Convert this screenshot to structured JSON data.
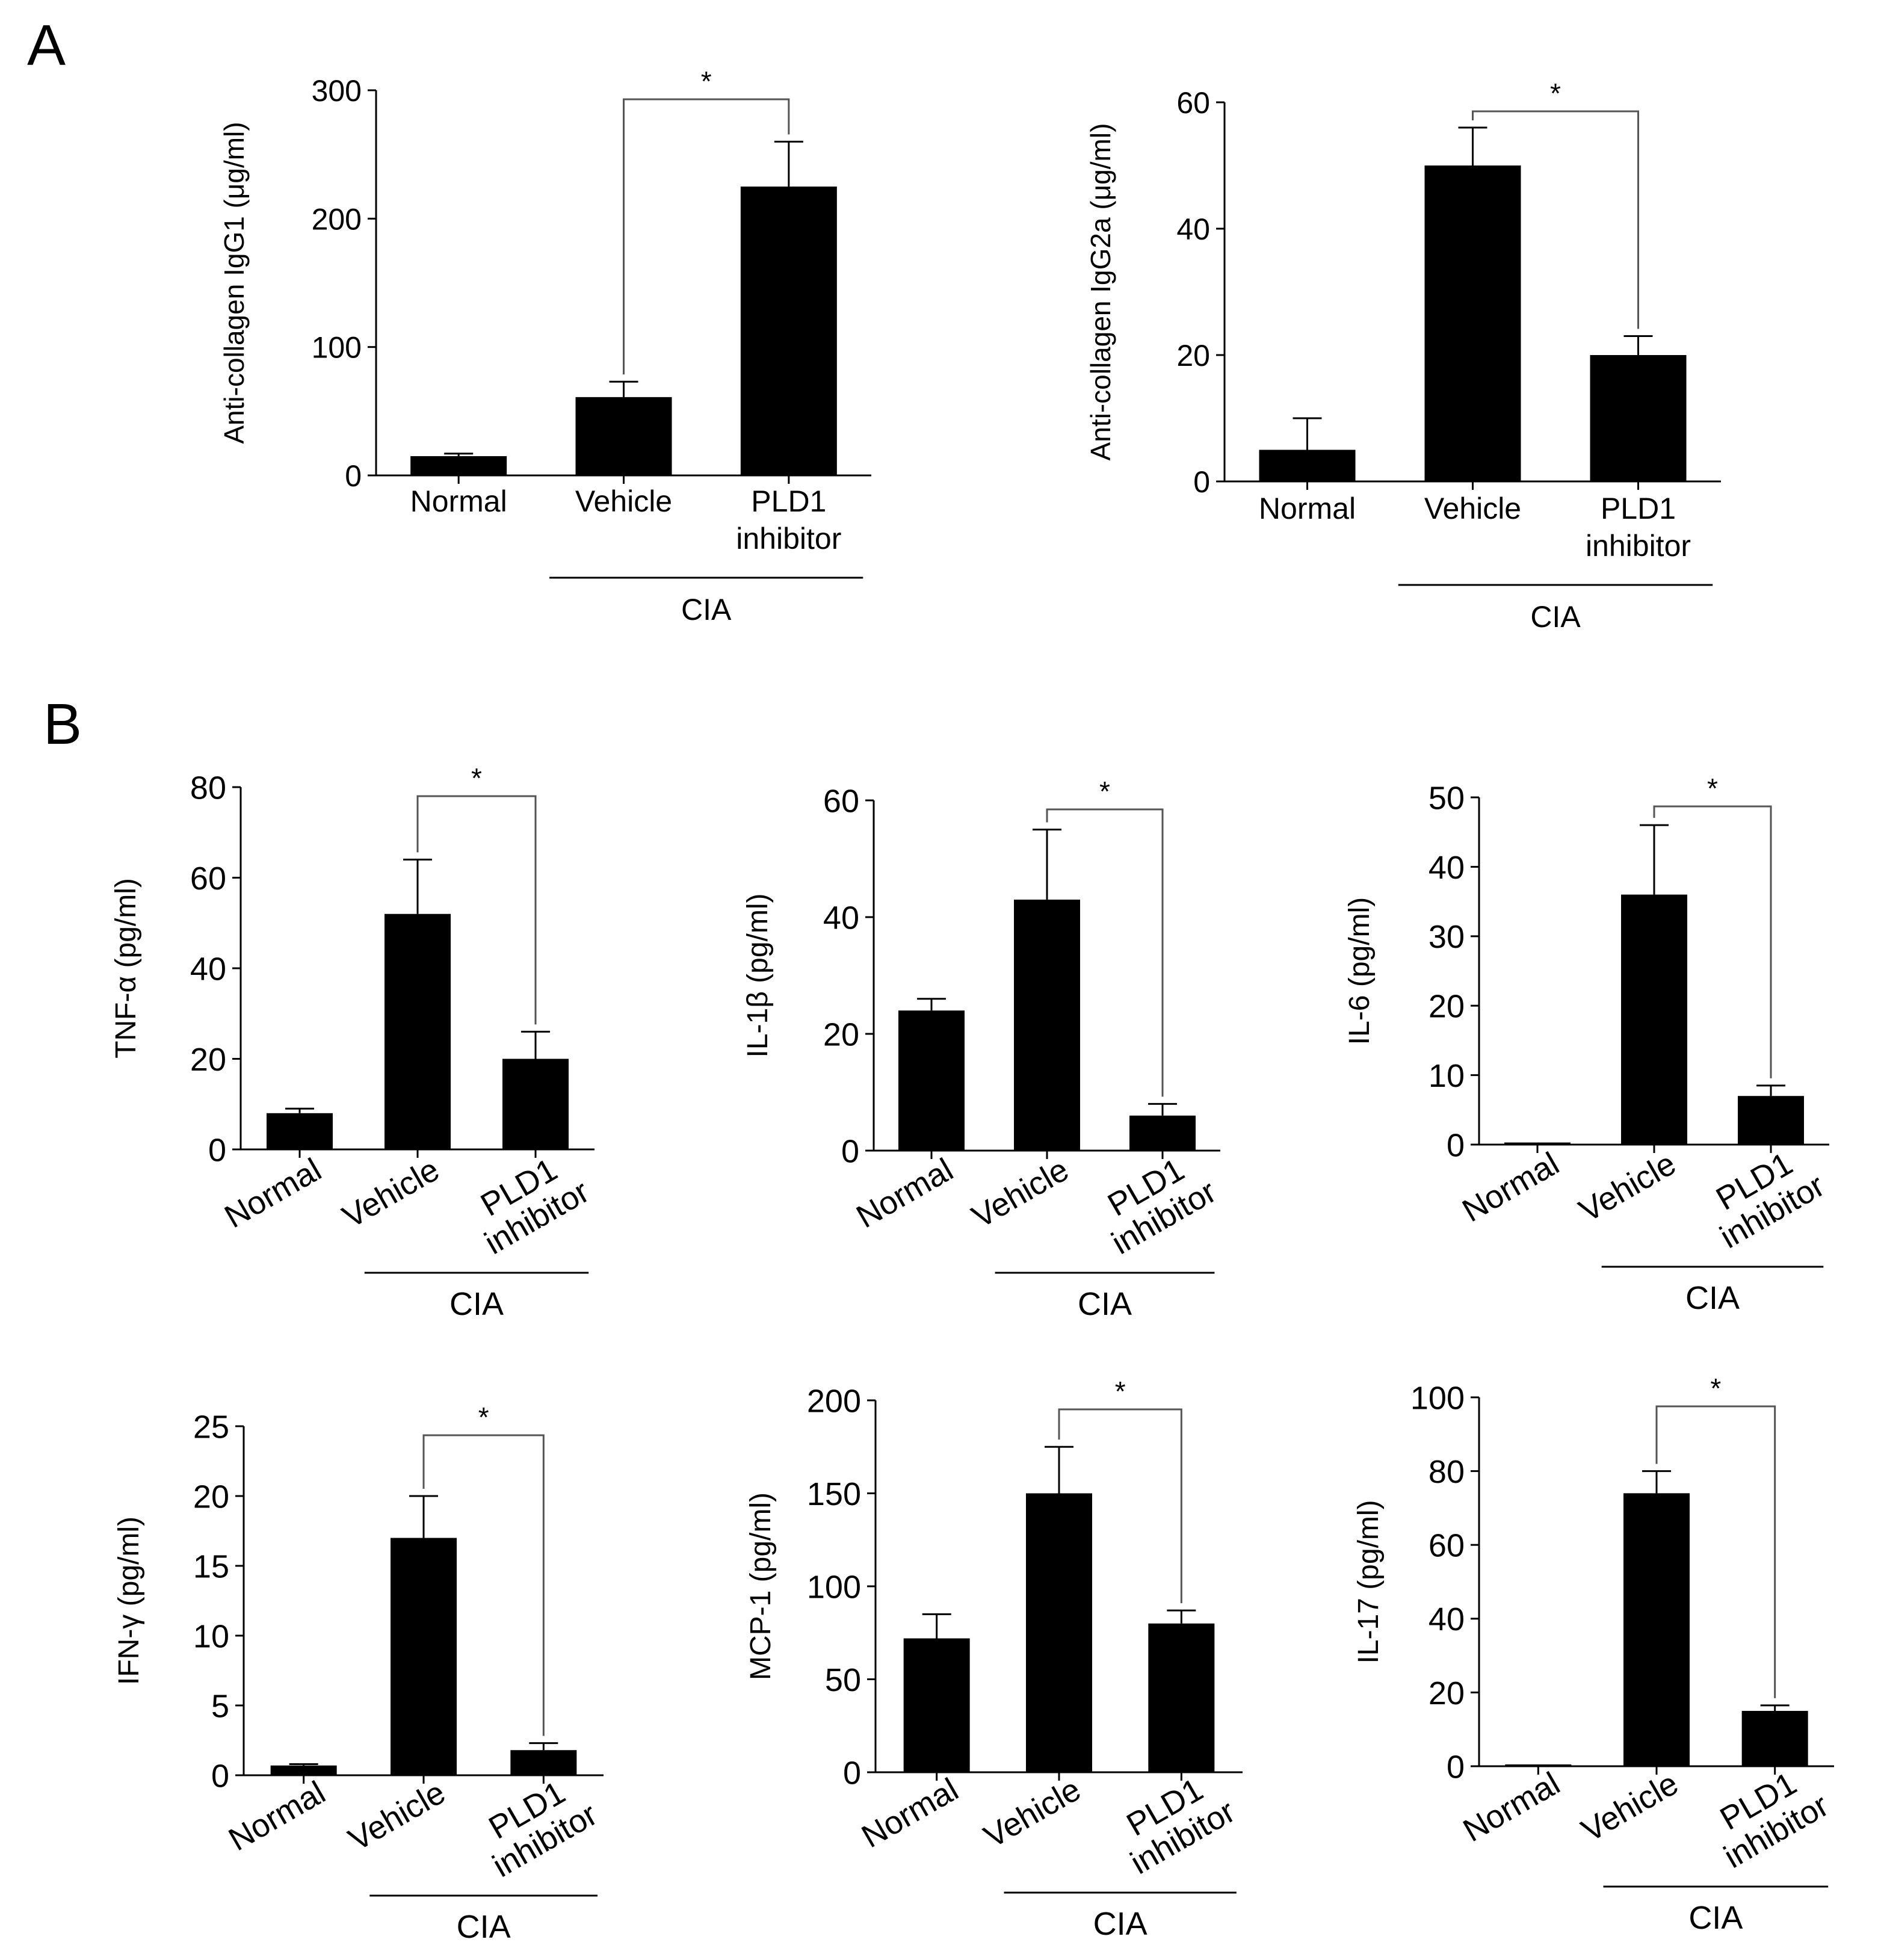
{
  "panel_labels": [
    "A",
    "B"
  ],
  "chart_data": [
    {
      "type": "bar",
      "panel": "A",
      "ylabel": "Anti-collagen IgG1 (μg/ml)",
      "ylim": [
        0,
        300
      ],
      "yticks": [
        0,
        100,
        200,
        300
      ],
      "categories": [
        "Normal",
        "Vehicle",
        "PLD1 inhibitor"
      ],
      "category_lines": [
        [
          "Normal"
        ],
        [
          "Vehicle"
        ],
        [
          "PLD1",
          "inhibitor"
        ]
      ],
      "values": [
        15,
        61,
        225
      ],
      "errors": [
        2,
        12,
        35
      ],
      "significance": {
        "from": 1,
        "to": 2,
        "label": "*"
      },
      "group": {
        "label": "CIA",
        "from": 1,
        "to": 2
      },
      "tick_rotation": 0,
      "bar_color": "#000000"
    },
    {
      "type": "bar",
      "panel": "A",
      "ylabel": "Anti-collagen IgG2a (μg/ml)",
      "ylim": [
        0,
        60
      ],
      "yticks": [
        0,
        20,
        40,
        60
      ],
      "categories": [
        "Normal",
        "Vehicle",
        "PLD1 inhibitor"
      ],
      "category_lines": [
        [
          "Normal"
        ],
        [
          "Vehicle"
        ],
        [
          "PLD1",
          "inhibitor"
        ]
      ],
      "values": [
        5,
        50,
        20
      ],
      "errors": [
        5,
        6,
        3
      ],
      "significance": {
        "from": 1,
        "to": 2,
        "label": "*"
      },
      "group": {
        "label": "CIA",
        "from": 1,
        "to": 2
      },
      "tick_rotation": 0,
      "bar_color": "#000000"
    },
    {
      "type": "bar",
      "panel": "B",
      "ylabel": "TNF-α (pg/ml)",
      "ylim": [
        0,
        80
      ],
      "yticks": [
        0,
        20,
        40,
        60,
        80
      ],
      "categories": [
        "Normal",
        "Vehicle",
        "PLD1 inhibitor"
      ],
      "category_lines": [
        [
          "Normal"
        ],
        [
          "Vehicle"
        ],
        [
          "PLD1",
          "inhibitor"
        ]
      ],
      "values": [
        8,
        52,
        20
      ],
      "errors": [
        1,
        12,
        6
      ],
      "significance": {
        "from": 1,
        "to": 2,
        "label": "*"
      },
      "group": {
        "label": "CIA",
        "from": 1,
        "to": 2
      },
      "tick_rotation": -30,
      "bar_color": "#000000"
    },
    {
      "type": "bar",
      "panel": "B",
      "ylabel": "IL-1β (pg/ml)",
      "ylim": [
        0,
        60
      ],
      "yticks": [
        0,
        20,
        40,
        60
      ],
      "categories": [
        "Normal",
        "Vehicle",
        "PLD1 inhibitor"
      ],
      "category_lines": [
        [
          "Normal"
        ],
        [
          "Vehicle"
        ],
        [
          "PLD1",
          "inhibitor"
        ]
      ],
      "values": [
        24,
        43,
        6
      ],
      "errors": [
        2,
        12,
        2
      ],
      "significance": {
        "from": 1,
        "to": 2,
        "label": "*"
      },
      "group": {
        "label": "CIA",
        "from": 1,
        "to": 2
      },
      "tick_rotation": -30,
      "bar_color": "#000000"
    },
    {
      "type": "bar",
      "panel": "B",
      "ylabel": "IL-6 (pg/ml)",
      "ylim": [
        0,
        50
      ],
      "yticks": [
        0,
        10,
        20,
        30,
        40,
        50
      ],
      "categories": [
        "Normal",
        "Vehicle",
        "PLD1 inhibitor"
      ],
      "category_lines": [
        [
          "Normal"
        ],
        [
          "Vehicle"
        ],
        [
          "PLD1",
          "inhibitor"
        ]
      ],
      "values": [
        0.3,
        36,
        7
      ],
      "errors": [
        0,
        10,
        1.5
      ],
      "significance": {
        "from": 1,
        "to": 2,
        "label": "*"
      },
      "group": {
        "label": "CIA",
        "from": 1,
        "to": 2
      },
      "tick_rotation": -30,
      "bar_color": "#000000"
    },
    {
      "type": "bar",
      "panel": "B",
      "ylabel": "IFN-γ (pg/ml)",
      "ylim": [
        0,
        25
      ],
      "yticks": [
        0,
        5,
        10,
        15,
        20,
        25
      ],
      "categories": [
        "Normal",
        "Vehicle",
        "PLD1 inhibitor"
      ],
      "category_lines": [
        [
          "Normal"
        ],
        [
          "Vehicle"
        ],
        [
          "PLD1",
          "inhibitor"
        ]
      ],
      "values": [
        0.7,
        17,
        1.8
      ],
      "errors": [
        0.1,
        3,
        0.5
      ],
      "significance": {
        "from": 1,
        "to": 2,
        "label": "*"
      },
      "group": {
        "label": "CIA",
        "from": 1,
        "to": 2
      },
      "tick_rotation": -30,
      "bar_color": "#000000"
    },
    {
      "type": "bar",
      "panel": "B",
      "ylabel": "MCP-1 (pg/ml)",
      "ylim": [
        0,
        200
      ],
      "yticks": [
        0,
        50,
        100,
        150,
        200
      ],
      "categories": [
        "Normal",
        "Vehicle",
        "PLD1 inhibitor"
      ],
      "category_lines": [
        [
          "Normal"
        ],
        [
          "Vehicle"
        ],
        [
          "PLD1",
          "inhibitor"
        ]
      ],
      "values": [
        72,
        150,
        80
      ],
      "errors": [
        13,
        25,
        7
      ],
      "significance": {
        "from": 1,
        "to": 2,
        "label": "*"
      },
      "group": {
        "label": "CIA",
        "from": 1,
        "to": 2
      },
      "tick_rotation": -30,
      "bar_color": "#000000"
    },
    {
      "type": "bar",
      "panel": "B",
      "ylabel": "IL-17 (pg/ml)",
      "ylim": [
        0,
        100
      ],
      "yticks": [
        0,
        20,
        40,
        60,
        80,
        100
      ],
      "categories": [
        "Normal",
        "Vehicle",
        "PLD1 inhibitor"
      ],
      "category_lines": [
        [
          "Normal"
        ],
        [
          "Vehicle"
        ],
        [
          "PLD1",
          "inhibitor"
        ]
      ],
      "values": [
        0,
        74,
        15
      ],
      "errors": [
        0,
        6,
        1.5
      ],
      "significance": {
        "from": 1,
        "to": 2,
        "label": "*"
      },
      "group": {
        "label": "CIA",
        "from": 1,
        "to": 2
      },
      "tick_rotation": -30,
      "bar_color": "#000000"
    }
  ]
}
